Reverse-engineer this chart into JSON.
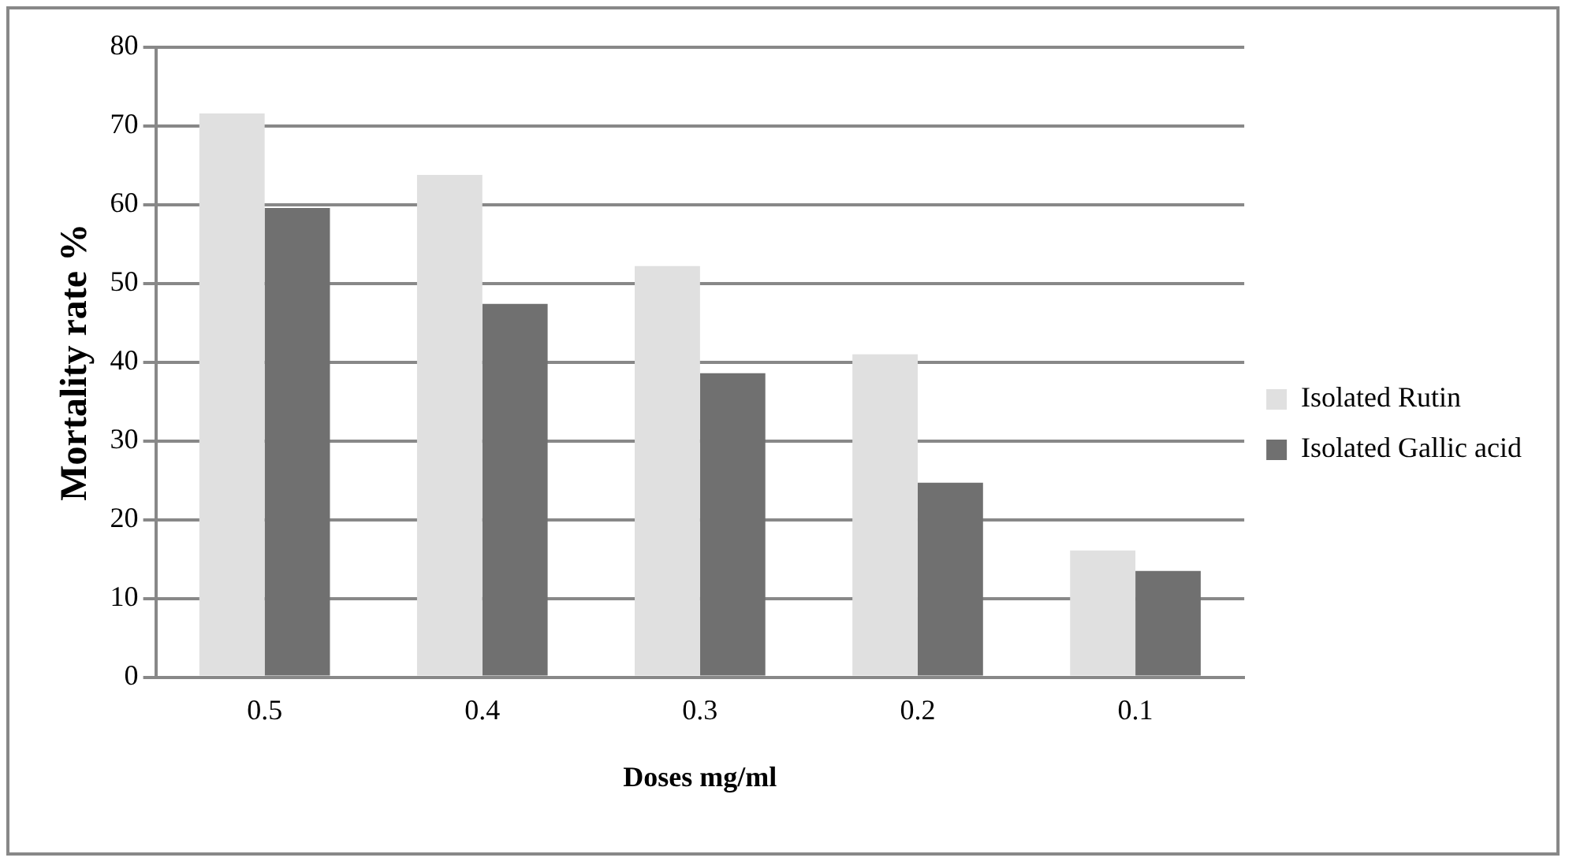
{
  "chart_data": {
    "type": "bar",
    "xlabel": "Doses mg/ml",
    "ylabel": "Mortality rate %",
    "categories": [
      "0.5",
      "0.4",
      "0.3",
      "0.2",
      "0.1"
    ],
    "series": [
      {
        "name": "Isolated Rutin",
        "color": "#e0e0e0",
        "values": [
          71.6,
          63.8,
          52.2,
          41.0,
          16.1
        ]
      },
      {
        "name": "Isolated Gallic acid",
        "color": "#707070",
        "values": [
          59.6,
          47.4,
          38.6,
          24.7,
          13.5
        ]
      }
    ],
    "ylim": [
      0,
      80
    ],
    "yticks": [
      0,
      10,
      20,
      30,
      40,
      50,
      60,
      70,
      80
    ],
    "grid": "y",
    "legend": "right"
  }
}
